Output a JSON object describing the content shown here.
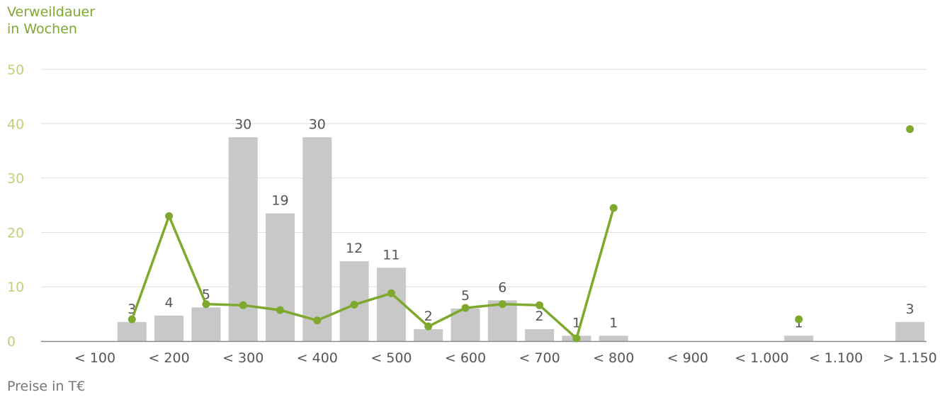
{
  "chart_data": {
    "type": "bar",
    "ylabel": [
      "Verweildauer",
      "in Wochen"
    ],
    "xlabel": "Preise in T€",
    "ylim": [
      0,
      50
    ],
    "yticks": [
      "0",
      "10",
      "20",
      "30",
      "40",
      "50"
    ],
    "grid": true,
    "xticks": [
      "< 100",
      "< 200",
      "< 300",
      "< 400",
      "< 500",
      "< 600",
      "< 700",
      "< 800",
      "< 900",
      "< 1.000",
      "< 1.100",
      "> 1.150"
    ],
    "bars": {
      "values": [
        null,
        3.5,
        4.7,
        6.2,
        37.5,
        23.5,
        37.5,
        14.7,
        13.5,
        2.2,
        6.0,
        7.5,
        2.2,
        1.0,
        1.0,
        null,
        null,
        null,
        null,
        1.0,
        null,
        null,
        3.5
      ],
      "labels": [
        "",
        "3",
        "4",
        "5",
        "30",
        "19",
        "30",
        "12",
        "11",
        "2",
        "5",
        "6",
        "2",
        "1",
        "1",
        "",
        "",
        "",
        "",
        "1",
        "",
        "",
        "3"
      ]
    },
    "line": {
      "values": [
        null,
        4.0,
        23.0,
        6.8,
        6.6,
        5.7,
        3.8,
        6.7,
        8.8,
        2.7,
        6.1,
        6.8,
        6.6,
        0.5,
        24.5,
        null,
        null,
        null,
        null,
        4.0,
        null,
        null,
        39.0
      ]
    },
    "colors": {
      "bar": "#c8c8c8",
      "line": "#7ea82e",
      "grid": "#dddddd",
      "tick_text": "#555555",
      "ytick_text": "#c2cf7a"
    }
  }
}
